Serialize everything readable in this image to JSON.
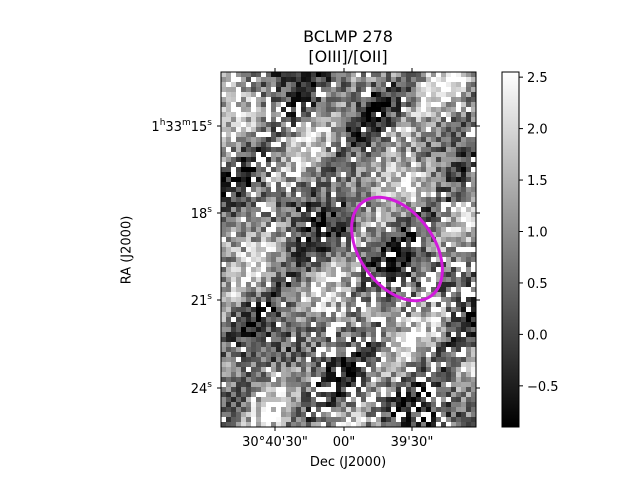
{
  "figure": {
    "title_line1": "BCLMP 278",
    "title_line2": "[OIII]/[OII]",
    "xlabel": "Dec (J2000)",
    "ylabel": "RA (J2000)"
  },
  "x_ticks": [
    "30°40'30\"",
    "00\"",
    "39'30\""
  ],
  "y_ticks": [
    {
      "hms": true,
      "h": "1",
      "m": "33",
      "s": "15"
    },
    {
      "hms": false,
      "s": "18"
    },
    {
      "hms": false,
      "s": "21"
    },
    {
      "hms": false,
      "s": "24"
    }
  ],
  "colorbar": {
    "min": -0.9,
    "max": 2.55,
    "tick_values": [
      -0.5,
      0.0,
      0.5,
      1.0,
      1.5,
      2.0,
      2.5
    ],
    "tick_labels": [
      "−0.5",
      "0.0",
      "0.5",
      "1.0",
      "1.5",
      "2.0",
      "2.5"
    ]
  },
  "colors": {
    "ellipse": "#d21adc",
    "blank_pixel": "#ffffff"
  }
}
